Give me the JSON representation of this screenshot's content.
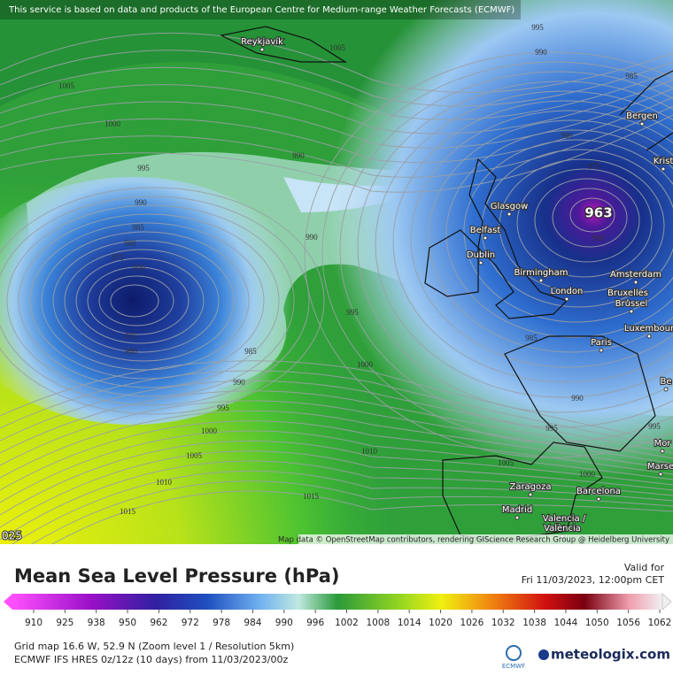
{
  "notice": "This service is based on data and products of the European Centre for Medium-range Weather Forecasts (ECMWF)",
  "attribution": "Map data © OpenStreetMap contributors, rendering GIScience Research Group @ Heidelberg University",
  "corner_label": "025",
  "low_center": 963,
  "cities": [
    "Reykjavík",
    "Bergen",
    "Krist",
    "Glasgow",
    "Belfast",
    "Dublin",
    "Birmingham",
    "Amsterdam",
    "London",
    "Bruxelles",
    "Brussel",
    "Luxembour",
    "Paris",
    "Zaragoza",
    "Barcelona",
    "Madrid",
    "Valencia /",
    "València",
    "Mor",
    "Marse",
    "Be"
  ],
  "isobar_labels": [
    995,
    990,
    985,
    1005,
    1005,
    1000,
    995,
    990,
    990,
    985,
    980,
    975,
    970,
    990,
    980,
    975,
    980,
    995,
    985,
    980,
    975,
    990,
    995,
    1000,
    1000,
    1005,
    1010,
    1010,
    1015,
    1015,
    1005,
    1000,
    990,
    995,
    985,
    995
  ],
  "legend": {
    "title": "Mean Sea Level Pressure (hPa)",
    "valid_label": "Valid for",
    "valid_time": "Fri 11/03/2023, 12:00pm CET",
    "ticks": [
      910,
      925,
      938,
      950,
      962,
      972,
      978,
      984,
      990,
      996,
      1002,
      1008,
      1014,
      1020,
      1026,
      1032,
      1038,
      1044,
      1050,
      1056,
      1062
    ]
  },
  "footer": {
    "grid": "Grid map 16.6 W, 52.9 N (Zoom level 1 / Resolution 5km)",
    "model": "ECMWF IFS HRES 0z/12z (10 days) from 11/03/2023/00z",
    "ecmwf": "ECMWF",
    "brand": "meteologix.com"
  }
}
